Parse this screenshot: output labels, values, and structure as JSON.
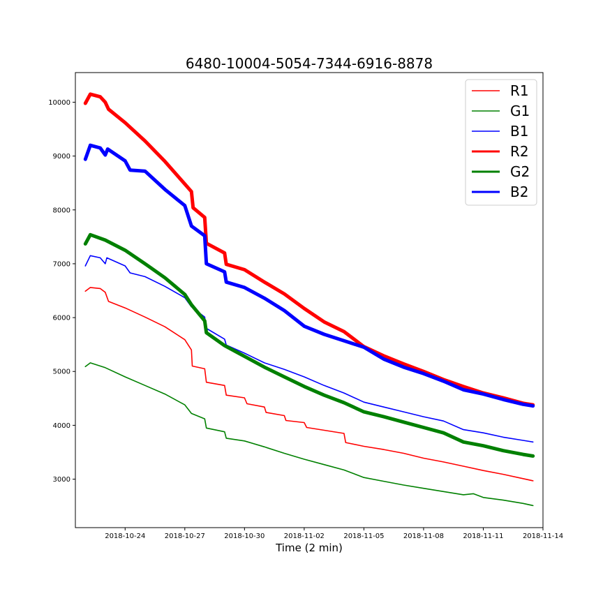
{
  "chart_data": {
    "type": "line",
    "title": "6480-10004-5054-7344-6916-8878",
    "xlabel": "Time (2 min)",
    "ylabel": "",
    "x_is_date": true,
    "xlim": [
      "2018-10-21T12:00",
      "2018-11-14T00:00"
    ],
    "ylim": [
      2100,
      10550
    ],
    "x_ticks": [
      "2018-10-24",
      "2018-10-27",
      "2018-10-30",
      "2018-11-02",
      "2018-11-05",
      "2018-11-08",
      "2018-11-11",
      "2018-11-14"
    ],
    "y_ticks": [
      3000,
      4000,
      5000,
      6000,
      7000,
      8000,
      9000,
      10000
    ],
    "grid": false,
    "legend_position": "top-right",
    "series": [
      {
        "name": "R1",
        "color": "#ff0000",
        "width": "thin",
        "points": [
          [
            "2018-10-22T00:00",
            6490
          ],
          [
            "2018-10-22T06:00",
            6560
          ],
          [
            "2018-10-22T18:00",
            6540
          ],
          [
            "2018-10-23T00:00",
            6470
          ],
          [
            "2018-10-23T04:00",
            6300
          ],
          [
            "2018-10-24T00:00",
            6180
          ],
          [
            "2018-10-25T00:00",
            6010
          ],
          [
            "2018-10-26T00:00",
            5830
          ],
          [
            "2018-10-27T00:00",
            5590
          ],
          [
            "2018-10-27T08:00",
            5400
          ],
          [
            "2018-10-27T09:00",
            5100
          ],
          [
            "2018-10-28T00:00",
            5050
          ],
          [
            "2018-10-28T02:00",
            4800
          ],
          [
            "2018-10-29T00:00",
            4740
          ],
          [
            "2018-10-29T02:00",
            4560
          ],
          [
            "2018-10-30T00:00",
            4510
          ],
          [
            "2018-10-30T03:00",
            4400
          ],
          [
            "2018-10-31T00:00",
            4340
          ],
          [
            "2018-10-31T02:00",
            4240
          ],
          [
            "2018-11-01T00:00",
            4180
          ],
          [
            "2018-11-01T02:00",
            4090
          ],
          [
            "2018-11-02T00:00",
            4050
          ],
          [
            "2018-11-02T03:00",
            3960
          ],
          [
            "2018-11-04T00:00",
            3850
          ],
          [
            "2018-11-04T02:00",
            3680
          ],
          [
            "2018-11-05T00:00",
            3610
          ],
          [
            "2018-11-06T00:00",
            3550
          ],
          [
            "2018-11-07T00:00",
            3480
          ],
          [
            "2018-11-08T00:00",
            3390
          ],
          [
            "2018-11-09T00:00",
            3320
          ],
          [
            "2018-11-10T00:00",
            3240
          ],
          [
            "2018-11-11T00:00",
            3160
          ],
          [
            "2018-11-12T00:00",
            3090
          ],
          [
            "2018-11-13T00:00",
            3010
          ],
          [
            "2018-11-13T12:00",
            2970
          ]
        ]
      },
      {
        "name": "G1",
        "color": "#008000",
        "width": "thin",
        "points": [
          [
            "2018-10-22T00:00",
            5090
          ],
          [
            "2018-10-22T06:00",
            5160
          ],
          [
            "2018-10-23T00:00",
            5070
          ],
          [
            "2018-10-24T00:00",
            4900
          ],
          [
            "2018-10-25T00:00",
            4740
          ],
          [
            "2018-10-26T00:00",
            4580
          ],
          [
            "2018-10-27T00:00",
            4380
          ],
          [
            "2018-10-27T08:00",
            4220
          ],
          [
            "2018-10-28T00:00",
            4120
          ],
          [
            "2018-10-28T02:00",
            3950
          ],
          [
            "2018-10-29T00:00",
            3880
          ],
          [
            "2018-10-29T02:00",
            3760
          ],
          [
            "2018-10-30T00:00",
            3710
          ],
          [
            "2018-10-31T00:00",
            3600
          ],
          [
            "2018-11-01T00:00",
            3480
          ],
          [
            "2018-11-02T00:00",
            3370
          ],
          [
            "2018-11-03T00:00",
            3270
          ],
          [
            "2018-11-04T00:00",
            3170
          ],
          [
            "2018-11-04T12:00",
            3100
          ],
          [
            "2018-11-05T00:00",
            3030
          ],
          [
            "2018-11-06T00:00",
            2960
          ],
          [
            "2018-11-07T00:00",
            2890
          ],
          [
            "2018-11-08T00:00",
            2830
          ],
          [
            "2018-11-09T00:00",
            2770
          ],
          [
            "2018-11-10T00:00",
            2710
          ],
          [
            "2018-11-10T12:00",
            2730
          ],
          [
            "2018-11-11T00:00",
            2660
          ],
          [
            "2018-11-12T00:00",
            2610
          ],
          [
            "2018-11-13T00:00",
            2550
          ],
          [
            "2018-11-13T12:00",
            2510
          ]
        ]
      },
      {
        "name": "B1",
        "color": "#0000ff",
        "width": "thin",
        "points": [
          [
            "2018-10-22T00:00",
            6960
          ],
          [
            "2018-10-22T06:00",
            7150
          ],
          [
            "2018-10-22T18:00",
            7110
          ],
          [
            "2018-10-23T00:00",
            7000
          ],
          [
            "2018-10-23T02:00",
            7110
          ],
          [
            "2018-10-24T00:00",
            6960
          ],
          [
            "2018-10-24T06:00",
            6830
          ],
          [
            "2018-10-25T00:00",
            6760
          ],
          [
            "2018-10-26T00:00",
            6580
          ],
          [
            "2018-10-27T00:00",
            6370
          ],
          [
            "2018-10-27T08:00",
            6200
          ],
          [
            "2018-10-28T00:00",
            6010
          ],
          [
            "2018-10-28T02:00",
            5800
          ],
          [
            "2018-10-29T00:00",
            5600
          ],
          [
            "2018-10-29T02:00",
            5490
          ],
          [
            "2018-10-30T00:00",
            5340
          ],
          [
            "2018-10-31T00:00",
            5160
          ],
          [
            "2018-11-01T00:00",
            5040
          ],
          [
            "2018-11-02T00:00",
            4900
          ],
          [
            "2018-11-03T00:00",
            4740
          ],
          [
            "2018-11-04T00:00",
            4600
          ],
          [
            "2018-11-05T00:00",
            4430
          ],
          [
            "2018-11-06T00:00",
            4340
          ],
          [
            "2018-11-07T00:00",
            4250
          ],
          [
            "2018-11-08T00:00",
            4160
          ],
          [
            "2018-11-09T00:00",
            4080
          ],
          [
            "2018-11-10T00:00",
            3920
          ],
          [
            "2018-11-11T00:00",
            3860
          ],
          [
            "2018-11-12T00:00",
            3780
          ],
          [
            "2018-11-13T00:00",
            3720
          ],
          [
            "2018-11-13T12:00",
            3690
          ]
        ]
      },
      {
        "name": "R2",
        "color": "#ff0000",
        "width": "thick",
        "points": [
          [
            "2018-10-22T00:00",
            9980
          ],
          [
            "2018-10-22T06:00",
            10150
          ],
          [
            "2018-10-22T18:00",
            10100
          ],
          [
            "2018-10-23T00:00",
            10000
          ],
          [
            "2018-10-23T04:00",
            9870
          ],
          [
            "2018-10-24T00:00",
            9620
          ],
          [
            "2018-10-25T00:00",
            9280
          ],
          [
            "2018-10-26T00:00",
            8900
          ],
          [
            "2018-10-27T00:00",
            8480
          ],
          [
            "2018-10-27T08:00",
            8340
          ],
          [
            "2018-10-27T10:00",
            8040
          ],
          [
            "2018-10-28T00:00",
            7860
          ],
          [
            "2018-10-28T02:00",
            7380
          ],
          [
            "2018-10-29T00:00",
            7200
          ],
          [
            "2018-10-29T02:00",
            6990
          ],
          [
            "2018-10-30T00:00",
            6890
          ],
          [
            "2018-10-31T00:00",
            6660
          ],
          [
            "2018-11-01T00:00",
            6440
          ],
          [
            "2018-11-02T00:00",
            6170
          ],
          [
            "2018-11-03T00:00",
            5920
          ],
          [
            "2018-11-04T00:00",
            5740
          ],
          [
            "2018-11-05T00:00",
            5460
          ],
          [
            "2018-11-06T00:00",
            5290
          ],
          [
            "2018-11-07T00:00",
            5140
          ],
          [
            "2018-11-08T00:00",
            5000
          ],
          [
            "2018-11-09T00:00",
            4850
          ],
          [
            "2018-11-10T00:00",
            4720
          ],
          [
            "2018-11-11T00:00",
            4600
          ],
          [
            "2018-11-12T00:00",
            4510
          ],
          [
            "2018-11-13T00:00",
            4410
          ],
          [
            "2018-11-13T12:00",
            4380
          ]
        ]
      },
      {
        "name": "G2",
        "color": "#008000",
        "width": "thick",
        "points": [
          [
            "2018-10-22T00:00",
            7370
          ],
          [
            "2018-10-22T06:00",
            7540
          ],
          [
            "2018-10-23T00:00",
            7440
          ],
          [
            "2018-10-24T00:00",
            7250
          ],
          [
            "2018-10-25T00:00",
            7000
          ],
          [
            "2018-10-26T00:00",
            6740
          ],
          [
            "2018-10-27T00:00",
            6430
          ],
          [
            "2018-10-27T08:00",
            6240
          ],
          [
            "2018-10-28T00:00",
            5940
          ],
          [
            "2018-10-28T02:00",
            5720
          ],
          [
            "2018-10-29T00:00",
            5480
          ],
          [
            "2018-10-30T00:00",
            5280
          ],
          [
            "2018-10-31T00:00",
            5080
          ],
          [
            "2018-11-01T00:00",
            4900
          ],
          [
            "2018-11-02T00:00",
            4720
          ],
          [
            "2018-11-03T00:00",
            4560
          ],
          [
            "2018-11-04T00:00",
            4420
          ],
          [
            "2018-11-05T00:00",
            4250
          ],
          [
            "2018-11-06T00:00",
            4160
          ],
          [
            "2018-11-07T00:00",
            4060
          ],
          [
            "2018-11-08T00:00",
            3960
          ],
          [
            "2018-11-09T00:00",
            3860
          ],
          [
            "2018-11-10T00:00",
            3690
          ],
          [
            "2018-11-11T00:00",
            3620
          ],
          [
            "2018-11-12T00:00",
            3530
          ],
          [
            "2018-11-13T00:00",
            3460
          ],
          [
            "2018-11-13T12:00",
            3430
          ]
        ]
      },
      {
        "name": "B2",
        "color": "#0000ff",
        "width": "thick",
        "points": [
          [
            "2018-10-22T00:00",
            8940
          ],
          [
            "2018-10-22T06:00",
            9200
          ],
          [
            "2018-10-22T18:00",
            9150
          ],
          [
            "2018-10-23T00:00",
            9020
          ],
          [
            "2018-10-23T03:00",
            9130
          ],
          [
            "2018-10-24T00:00",
            8910
          ],
          [
            "2018-10-24T06:00",
            8740
          ],
          [
            "2018-10-25T00:00",
            8720
          ],
          [
            "2018-10-26T00:00",
            8380
          ],
          [
            "2018-10-27T00:00",
            8080
          ],
          [
            "2018-10-27T08:00",
            7700
          ],
          [
            "2018-10-28T00:00",
            7520
          ],
          [
            "2018-10-28T02:00",
            7000
          ],
          [
            "2018-10-29T00:00",
            6850
          ],
          [
            "2018-10-29T02:00",
            6660
          ],
          [
            "2018-10-30T00:00",
            6560
          ],
          [
            "2018-10-31T00:00",
            6360
          ],
          [
            "2018-11-01T00:00",
            6130
          ],
          [
            "2018-11-02T00:00",
            5840
          ],
          [
            "2018-11-03T00:00",
            5690
          ],
          [
            "2018-11-04T00:00",
            5570
          ],
          [
            "2018-11-05T00:00",
            5450
          ],
          [
            "2018-11-06T00:00",
            5230
          ],
          [
            "2018-11-07T00:00",
            5080
          ],
          [
            "2018-11-08T00:00",
            4960
          ],
          [
            "2018-11-09T00:00",
            4820
          ],
          [
            "2018-11-10T00:00",
            4660
          ],
          [
            "2018-11-11T00:00",
            4580
          ],
          [
            "2018-11-12T00:00",
            4480
          ],
          [
            "2018-11-13T00:00",
            4390
          ],
          [
            "2018-11-13T12:00",
            4360
          ]
        ]
      }
    ]
  }
}
